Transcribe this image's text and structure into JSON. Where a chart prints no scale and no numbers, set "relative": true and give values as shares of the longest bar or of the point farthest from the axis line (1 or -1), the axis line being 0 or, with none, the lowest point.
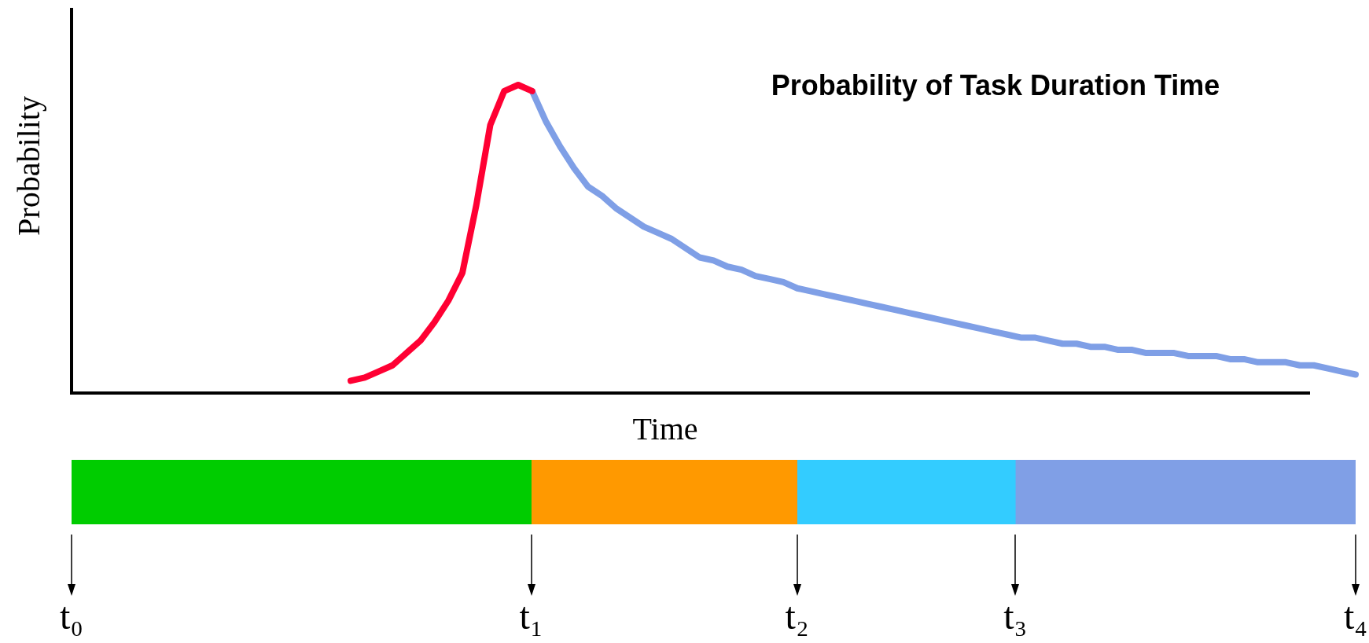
{
  "chart_data": [
    {
      "type": "line",
      "title": "Probability of Task Duration Time",
      "xlabel": "Time",
      "ylabel": "Probability",
      "relative": true,
      "categories": [
        null,
        null,
        null,
        null,
        null,
        null,
        null,
        null,
        null,
        null,
        null,
        null,
        null,
        null,
        null,
        null,
        null,
        null,
        null,
        null,
        null,
        null,
        null,
        null,
        null,
        null,
        null,
        null,
        null,
        null,
        null,
        null,
        null,
        null,
        null,
        null,
        null,
        null,
        null,
        null,
        null,
        null,
        null,
        null,
        null,
        null,
        null,
        null,
        null,
        null,
        null,
        null,
        null,
        null,
        null,
        null,
        null,
        null,
        null,
        null,
        null,
        null,
        null,
        null,
        null,
        null,
        null,
        null,
        null,
        null,
        null,
        null,
        null,
        null,
        null,
        null,
        null,
        null,
        null,
        null,
        null,
        null,
        null,
        null,
        null,
        null,
        null,
        null,
        null,
        null,
        null,
        null,
        null
      ],
      "series": [
        {
          "color": "#ff0033",
          "values": [
            null,
            null,
            null,
            null,
            null,
            null,
            null,
            null,
            null,
            null,
            null,
            null,
            null,
            null,
            null,
            null,
            null,
            null,
            null,
            null,
            0.04,
            0.05,
            0.07,
            0.09,
            0.13,
            0.17,
            0.23,
            0.3,
            0.39,
            0.61,
            0.87,
            0.98,
            1.0,
            0.98,
            null,
            null,
            null,
            null,
            null,
            null,
            null,
            null,
            null,
            null,
            null,
            null,
            null,
            null,
            null,
            null,
            null,
            null,
            null,
            null,
            null,
            null,
            null,
            null,
            null,
            null,
            null,
            null,
            null,
            null,
            null,
            null,
            null,
            null,
            null,
            null,
            null,
            null,
            null,
            null,
            null,
            null,
            null,
            null,
            null,
            null,
            null,
            null,
            null,
            null,
            null,
            null,
            null,
            null,
            null,
            null,
            null,
            null,
            null
          ]
        },
        {
          "color": "#7f9fe6",
          "values": [
            null,
            null,
            null,
            null,
            null,
            null,
            null,
            null,
            null,
            null,
            null,
            null,
            null,
            null,
            null,
            null,
            null,
            null,
            null,
            null,
            null,
            null,
            null,
            null,
            null,
            null,
            null,
            null,
            null,
            null,
            null,
            null,
            null,
            0.98,
            0.88,
            0.8,
            0.73,
            0.67,
            0.64,
            0.6,
            0.57,
            0.54,
            0.52,
            0.5,
            0.47,
            0.44,
            0.43,
            0.41,
            0.4,
            0.38,
            0.37,
            0.36,
            0.34,
            0.33,
            0.32,
            0.31,
            0.3,
            0.29,
            0.28,
            0.27,
            0.26,
            0.25,
            0.24,
            0.23,
            0.22,
            0.21,
            0.2,
            0.19,
            0.18,
            0.18,
            0.17,
            0.16,
            0.16,
            0.15,
            0.15,
            0.14,
            0.14,
            0.13,
            0.13,
            0.13,
            0.12,
            0.12,
            0.12,
            0.11,
            0.11,
            0.1,
            0.1,
            0.1,
            0.09,
            0.09,
            0.08,
            0.07,
            0.06
          ]
        }
      ],
      "legend": false,
      "marker": "none",
      "line_style": "solid"
    },
    {
      "type": "bar",
      "orientation": "horizontal",
      "stacked": true,
      "relative": true,
      "categories": [
        null
      ],
      "series": [
        {
          "color": "#00cc00",
          "values": [
            0.358
          ]
        },
        {
          "color": "#ff9900",
          "values": [
            0.207
          ]
        },
        {
          "color": "#33ccff",
          "values": [
            0.17
          ]
        },
        {
          "color": "#809fe6",
          "values": [
            0.265
          ]
        }
      ],
      "annotations": [
        "t₀",
        "t₁",
        "t₂",
        "t₃",
        "t₄"
      ],
      "legend": false
    }
  ]
}
